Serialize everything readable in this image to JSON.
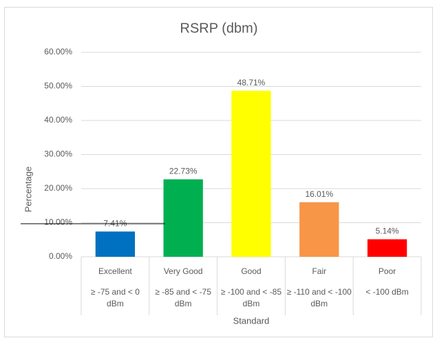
{
  "chart_data": {
    "type": "bar",
    "title": "RSRP (dbm)",
    "x_label": "Standard",
    "y_label": "Percentage",
    "categories": [
      "Excellent",
      "Very Good",
      "Good",
      "Fair",
      "Poor"
    ],
    "category_details": [
      "≥ -75 and < 0 dBm",
      "≥ -85 and < -75 dBm",
      "≥ -100 and < -85 dBm",
      "≥ -110 and < -100 dBm",
      "< -100 dBm"
    ],
    "values": [
      7.41,
      22.73,
      48.71,
      16.01,
      5.14
    ],
    "value_labels": [
      "7.41%",
      "22.73%",
      "48.71%",
      "16.01%",
      "5.14%"
    ],
    "colors": [
      "#0070c0",
      "#00b050",
      "#ffff00",
      "#f79646",
      "#ff0000"
    ],
    "ylim": [
      0,
      60
    ],
    "yticks": [
      {
        "value": 0,
        "label": "0.00%"
      },
      {
        "value": 10,
        "label": "10.00%"
      },
      {
        "value": 20,
        "label": "20.00%"
      },
      {
        "value": 30,
        "label": "30.00%"
      },
      {
        "value": 40,
        "label": "40.00%"
      },
      {
        "value": 50,
        "label": "50.00%"
      },
      {
        "value": 60,
        "label": "60.00%"
      }
    ],
    "grid": true
  }
}
